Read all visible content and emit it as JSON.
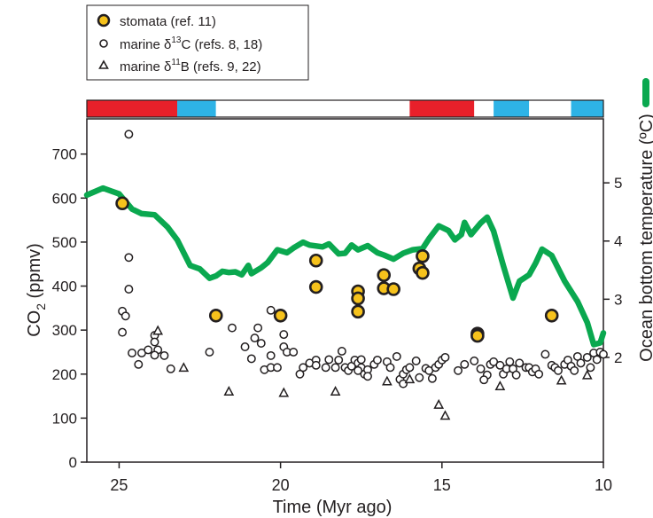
{
  "chart_data": {
    "type": "scatter",
    "xlabel": "Time (Myr ago)",
    "ylabel_left": {
      "main": "CO",
      "sub": "2",
      "rest": " (ppmv)"
    },
    "ylabel_right": "Ocean bottom temperature (ºC)",
    "xlim": [
      26,
      10
    ],
    "ylim_left": [
      0,
      780
    ],
    "ylim_right": [
      0.2,
      6.1
    ],
    "x_ticks": [
      25,
      20,
      15,
      10
    ],
    "x_tick_labels": [
      "25",
      "20",
      "15",
      "10"
    ],
    "y_left_ticks": [
      0,
      100,
      200,
      300,
      400,
      500,
      600,
      700
    ],
    "y_left_tick_labels": [
      "0",
      "100",
      "200",
      "300",
      "400",
      "500",
      "600",
      "700"
    ],
    "y_right_ticks": [
      2,
      3,
      4,
      5
    ],
    "y_right_tick_labels": [
      "2",
      "3",
      "4",
      "5"
    ],
    "legend": {
      "placement": "top-left",
      "entries": [
        {
          "marker": "filled-circle",
          "text": "stomata (ref. 11)"
        },
        {
          "marker": "open-circle",
          "pre": "marine δ",
          "sup": "13",
          "post": "C (refs. 8, 18)"
        },
        {
          "marker": "triangle",
          "pre": "marine δ",
          "sup": "11",
          "post": "B (refs. 9, 22)"
        }
      ]
    },
    "colors": {
      "stomata_fill": "#f6c21c",
      "temperature_line": "#0aa84f",
      "bar_red": "#e8202a",
      "bar_blue": "#2eb3e6",
      "axis": "#231f20"
    },
    "climate_bar": [
      {
        "start": 26,
        "end": 23.2,
        "color": "red"
      },
      {
        "start": 23.2,
        "end": 22.0,
        "color": "blue"
      },
      {
        "start": 22.0,
        "end": 16.0,
        "color": "white"
      },
      {
        "start": 16.0,
        "end": 14.0,
        "color": "red"
      },
      {
        "start": 14.0,
        "end": 13.4,
        "color": "white"
      },
      {
        "start": 13.4,
        "end": 12.3,
        "color": "blue"
      },
      {
        "start": 12.3,
        "end": 11.0,
        "color": "white"
      },
      {
        "start": 11.0,
        "end": 10,
        "color": "blue"
      }
    ],
    "series": [
      {
        "name": "stomata (ref. 11)",
        "axis": "left",
        "marker": "filled-circle",
        "points": [
          [
            24.9,
            588
          ],
          [
            22.0,
            333
          ],
          [
            20.0,
            333
          ],
          [
            18.9,
            458
          ],
          [
            18.9,
            398
          ],
          [
            17.6,
            388
          ],
          [
            17.6,
            372
          ],
          [
            17.6,
            342
          ],
          [
            16.8,
            425
          ],
          [
            16.8,
            395
          ],
          [
            16.5,
            393
          ],
          [
            15.6,
            468
          ],
          [
            15.7,
            440
          ],
          [
            15.6,
            430
          ],
          [
            13.9,
            292
          ],
          [
            13.9,
            287
          ],
          [
            11.6,
            333
          ]
        ]
      },
      {
        "name": "marine δ13C (refs. 8, 18)",
        "axis": "left",
        "marker": "open-circle",
        "points": [
          [
            24.7,
            745
          ],
          [
            24.7,
            465
          ],
          [
            24.7,
            393
          ],
          [
            24.9,
            343
          ],
          [
            24.8,
            332
          ],
          [
            24.9,
            295
          ],
          [
            24.6,
            248
          ],
          [
            24.4,
            222
          ],
          [
            24.3,
            248
          ],
          [
            24.1,
            255
          ],
          [
            23.9,
            288
          ],
          [
            23.9,
            273
          ],
          [
            23.8,
            255
          ],
          [
            23.9,
            243
          ],
          [
            23.6,
            242
          ],
          [
            23.4,
            212
          ],
          [
            22.2,
            250
          ],
          [
            21.5,
            305
          ],
          [
            21.1,
            262
          ],
          [
            20.9,
            235
          ],
          [
            20.8,
            282
          ],
          [
            20.7,
            305
          ],
          [
            20.6,
            270
          ],
          [
            20.5,
            210
          ],
          [
            20.3,
            215
          ],
          [
            20.3,
            242
          ],
          [
            20.3,
            345
          ],
          [
            20.0,
            328
          ],
          [
            19.9,
            290
          ],
          [
            19.9,
            262
          ],
          [
            20.1,
            215
          ],
          [
            19.8,
            250
          ],
          [
            19.6,
            250
          ],
          [
            19.4,
            200
          ],
          [
            19.3,
            215
          ],
          [
            19.1,
            225
          ],
          [
            18.9,
            232
          ],
          [
            18.9,
            220
          ],
          [
            18.6,
            215
          ],
          [
            18.5,
            233
          ],
          [
            18.3,
            215
          ],
          [
            18.2,
            232
          ],
          [
            18.1,
            252
          ],
          [
            18.0,
            215
          ],
          [
            17.9,
            208
          ],
          [
            17.8,
            218
          ],
          [
            17.7,
            232
          ],
          [
            17.6,
            225
          ],
          [
            17.5,
            215
          ],
          [
            17.6,
            208
          ],
          [
            17.4,
            200
          ],
          [
            17.5,
            233
          ],
          [
            17.3,
            210
          ],
          [
            17.3,
            195
          ],
          [
            17.1,
            222
          ],
          [
            17.0,
            232
          ],
          [
            16.7,
            228
          ],
          [
            16.6,
            215
          ],
          [
            16.4,
            240
          ],
          [
            16.3,
            188
          ],
          [
            16.2,
            200
          ],
          [
            16.2,
            178
          ],
          [
            16.1,
            210
          ],
          [
            16.0,
            215
          ],
          [
            15.8,
            230
          ],
          [
            15.7,
            192
          ],
          [
            15.5,
            213
          ],
          [
            15.4,
            208
          ],
          [
            15.3,
            190
          ],
          [
            15.2,
            215
          ],
          [
            15.1,
            222
          ],
          [
            15.0,
            232
          ],
          [
            14.9,
            238
          ],
          [
            14.5,
            208
          ],
          [
            14.3,
            222
          ],
          [
            14.0,
            230
          ],
          [
            13.8,
            212
          ],
          [
            13.6,
            198
          ],
          [
            13.7,
            187
          ],
          [
            13.5,
            222
          ],
          [
            13.4,
            228
          ],
          [
            13.2,
            220
          ],
          [
            13.1,
            200
          ],
          [
            13.0,
            212
          ],
          [
            12.9,
            228
          ],
          [
            12.8,
            212
          ],
          [
            12.7,
            198
          ],
          [
            12.6,
            225
          ],
          [
            12.4,
            215
          ],
          [
            12.3,
            215
          ],
          [
            12.2,
            205
          ],
          [
            12.1,
            212
          ],
          [
            12.0,
            200
          ],
          [
            11.8,
            245
          ],
          [
            11.6,
            220
          ],
          [
            11.5,
            215
          ],
          [
            11.4,
            208
          ],
          [
            11.2,
            222
          ],
          [
            11.1,
            232
          ],
          [
            11.0,
            218
          ],
          [
            10.9,
            208
          ],
          [
            10.8,
            240
          ],
          [
            10.7,
            225
          ],
          [
            10.5,
            238
          ],
          [
            10.4,
            215
          ],
          [
            10.3,
            248
          ],
          [
            10.2,
            233
          ],
          [
            10.1,
            250
          ],
          [
            10.0,
            245
          ]
        ]
      },
      {
        "name": "marine δ11B (refs. 9, 22)",
        "axis": "left",
        "marker": "triangle",
        "points": [
          [
            23.8,
            298
          ],
          [
            23.0,
            214
          ],
          [
            21.6,
            160
          ],
          [
            19.9,
            157
          ],
          [
            18.3,
            160
          ],
          [
            16.7,
            183
          ],
          [
            16.0,
            188
          ],
          [
            15.1,
            130
          ],
          [
            14.9,
            105
          ],
          [
            13.2,
            172
          ],
          [
            11.3,
            185
          ],
          [
            10.5,
            197
          ]
        ]
      },
      {
        "name": "Ocean bottom temperature (ºC)",
        "axis": "right",
        "marker": "line",
        "points": [
          [
            26.0,
            4.79
          ],
          [
            25.5,
            4.91
          ],
          [
            25.0,
            4.81
          ],
          [
            24.6,
            4.55
          ],
          [
            24.3,
            4.47
          ],
          [
            23.9,
            4.45
          ],
          [
            23.5,
            4.24
          ],
          [
            23.2,
            4.02
          ],
          [
            22.8,
            3.58
          ],
          [
            22.5,
            3.52
          ],
          [
            22.2,
            3.36
          ],
          [
            22.0,
            3.4
          ],
          [
            21.8,
            3.48
          ],
          [
            21.6,
            3.46
          ],
          [
            21.4,
            3.47
          ],
          [
            21.2,
            3.42
          ],
          [
            21.0,
            3.58
          ],
          [
            20.9,
            3.44
          ],
          [
            20.6,
            3.54
          ],
          [
            20.4,
            3.63
          ],
          [
            20.1,
            3.85
          ],
          [
            19.8,
            3.8
          ],
          [
            19.6,
            3.88
          ],
          [
            19.3,
            3.98
          ],
          [
            19.1,
            3.93
          ],
          [
            18.7,
            3.9
          ],
          [
            18.5,
            3.95
          ],
          [
            18.2,
            3.78
          ],
          [
            18.0,
            3.79
          ],
          [
            17.8,
            3.93
          ],
          [
            17.6,
            3.85
          ],
          [
            17.3,
            3.92
          ],
          [
            17.0,
            3.8
          ],
          [
            16.8,
            3.76
          ],
          [
            16.5,
            3.69
          ],
          [
            16.2,
            3.79
          ],
          [
            15.9,
            3.85
          ],
          [
            15.6,
            3.87
          ],
          [
            15.4,
            4.04
          ],
          [
            15.1,
            4.26
          ],
          [
            14.8,
            4.18
          ],
          [
            14.6,
            4.02
          ],
          [
            14.4,
            4.11
          ],
          [
            14.3,
            4.32
          ],
          [
            14.1,
            4.11
          ],
          [
            13.8,
            4.31
          ],
          [
            13.6,
            4.41
          ],
          [
            13.4,
            4.17
          ],
          [
            13.1,
            3.58
          ],
          [
            12.8,
            3.02
          ],
          [
            12.6,
            3.31
          ],
          [
            12.3,
            3.42
          ],
          [
            12.1,
            3.62
          ],
          [
            11.9,
            3.86
          ],
          [
            11.6,
            3.75
          ],
          [
            11.2,
            3.31
          ],
          [
            10.8,
            2.96
          ],
          [
            10.5,
            2.6
          ],
          [
            10.3,
            2.22
          ],
          [
            10.1,
            2.25
          ],
          [
            10.0,
            2.42
          ]
        ]
      }
    ]
  }
}
